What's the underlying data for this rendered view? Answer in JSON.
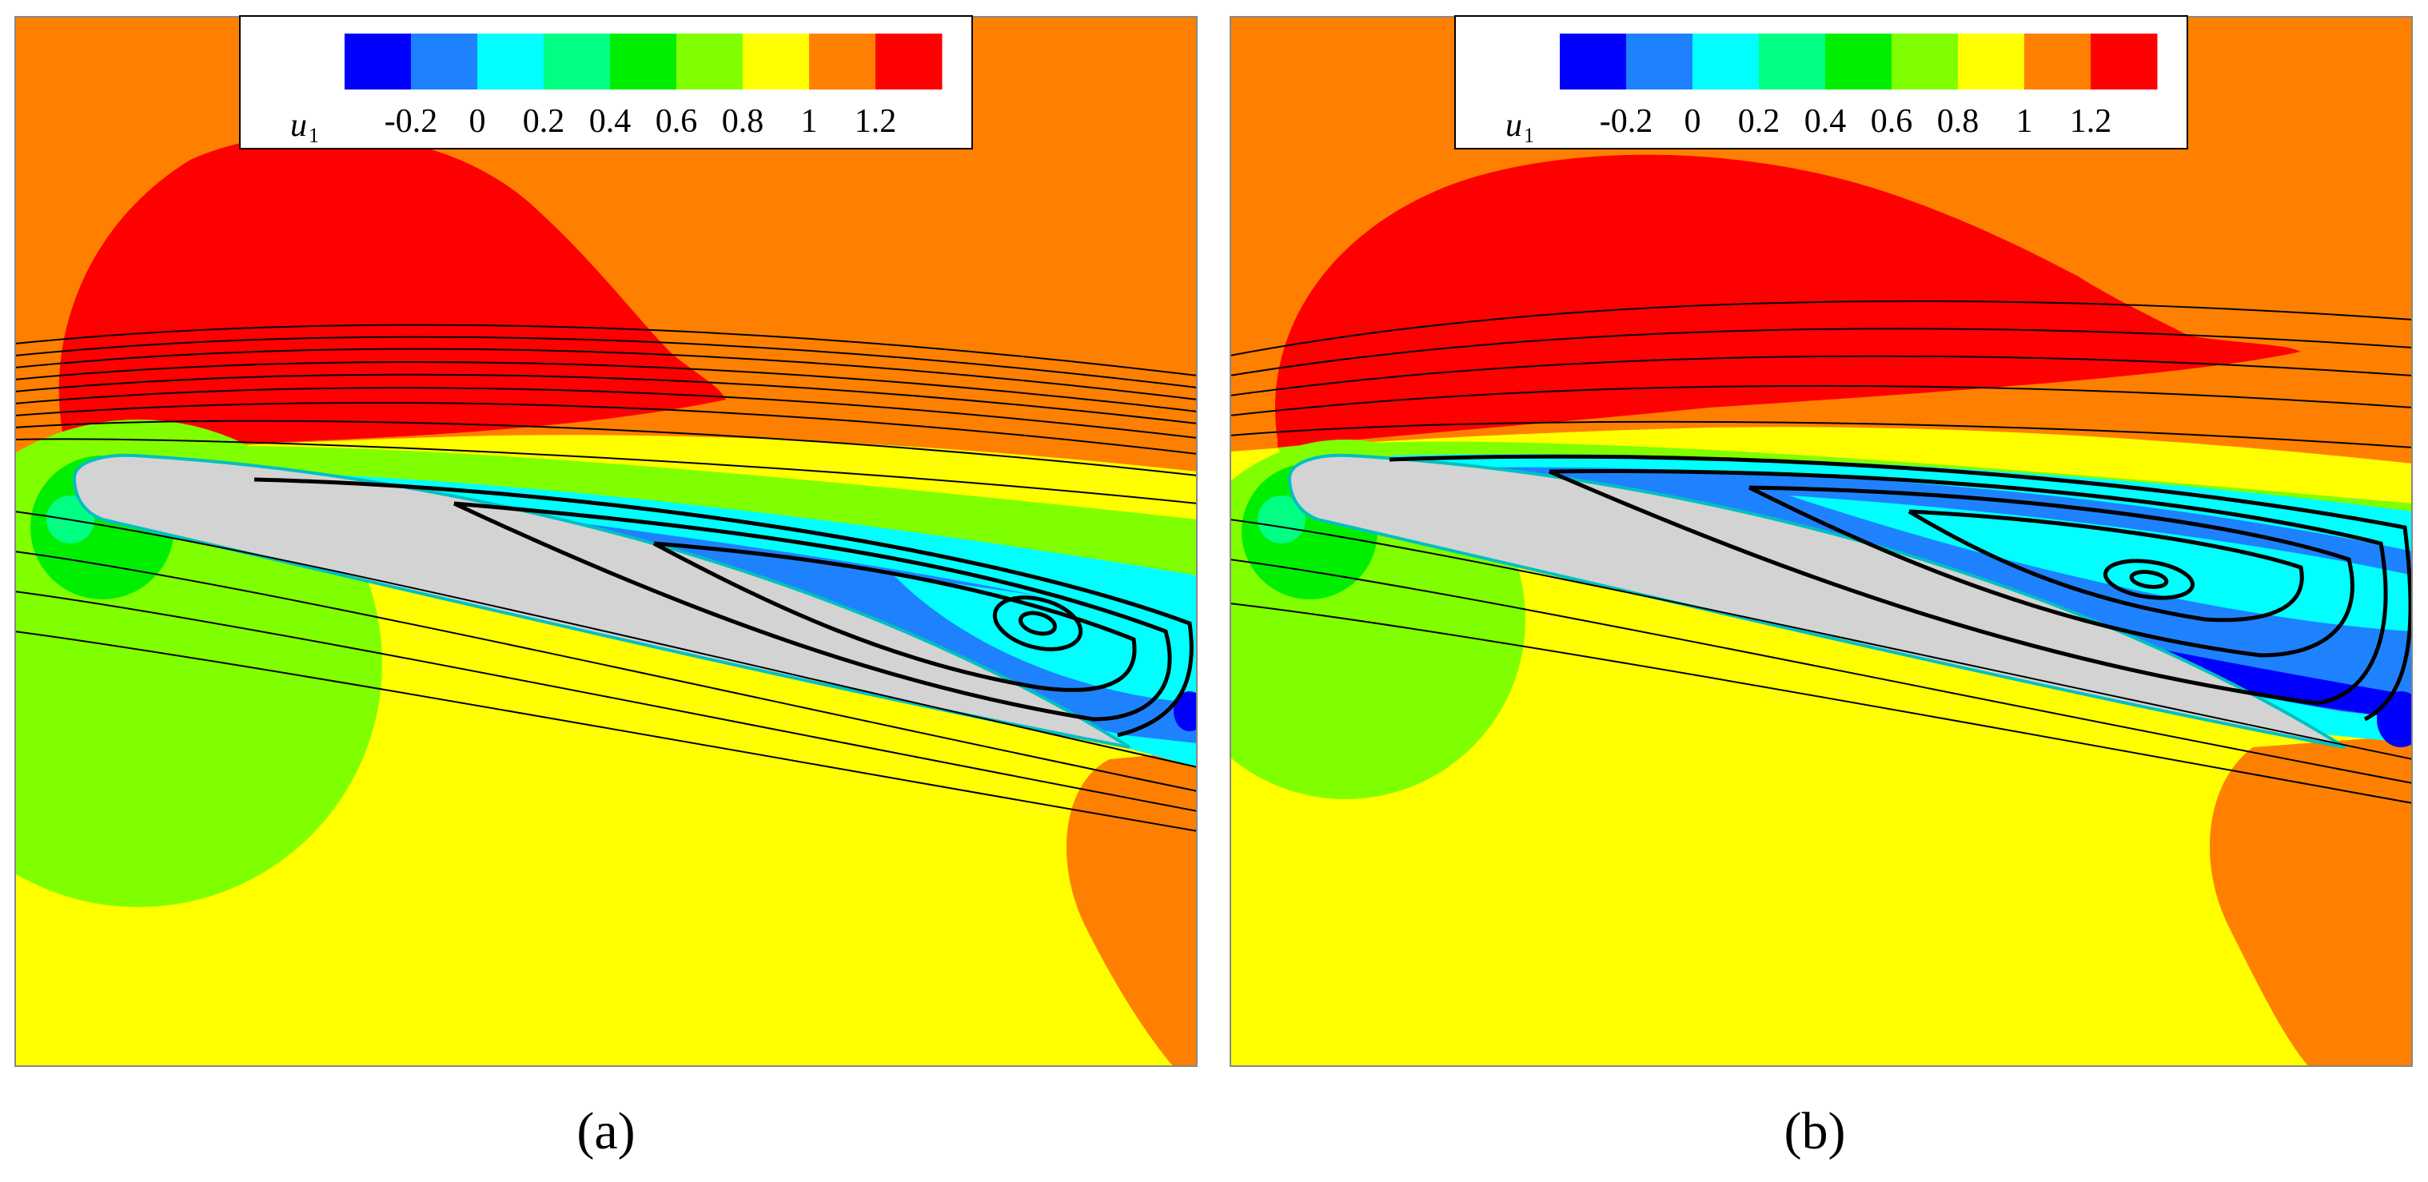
{
  "chart_data": [
    {
      "type": "heatmap",
      "panel_label": "(a)",
      "colorbar": {
        "variable": "u",
        "variable_subscript": "1",
        "ticks": [
          "-0.2",
          "0",
          "0.2",
          "0.4",
          "0.6",
          "0.8",
          "1",
          "1.2"
        ],
        "levels": [
          -0.3,
          -0.2,
          -0.1,
          0.0,
          0.1,
          0.2,
          0.3,
          0.4,
          0.5,
          0.6,
          0.7,
          0.8,
          0.9,
          1.0,
          1.1,
          1.2,
          1.3
        ],
        "colors": [
          "#0000ff",
          "#1e82ff",
          "#00ffff",
          "#00ff82",
          "#00ee00",
          "#80ff00",
          "#ffff00",
          "#ff8000",
          "#ff0000"
        ]
      },
      "airfoil_color": "#d3d3d3",
      "streamlines": true,
      "separation_vortex_count": 1
    },
    {
      "type": "heatmap",
      "panel_label": "(b)",
      "colorbar": {
        "variable": "u",
        "variable_subscript": "1",
        "ticks": [
          "-0.2",
          "0",
          "0.2",
          "0.4",
          "0.6",
          "0.8",
          "1",
          "1.2"
        ],
        "levels": [
          -0.3,
          -0.2,
          -0.1,
          0.0,
          0.1,
          0.2,
          0.3,
          0.4,
          0.5,
          0.6,
          0.7,
          0.8,
          0.9,
          1.0,
          1.1,
          1.2,
          1.3
        ],
        "colors": [
          "#0000ff",
          "#1e82ff",
          "#00ffff",
          "#00ff82",
          "#00ee00",
          "#80ff00",
          "#ffff00",
          "#ff8000",
          "#ff0000"
        ]
      },
      "airfoil_color": "#d3d3d3",
      "streamlines": true,
      "separation_vortex_count": 1
    }
  ]
}
